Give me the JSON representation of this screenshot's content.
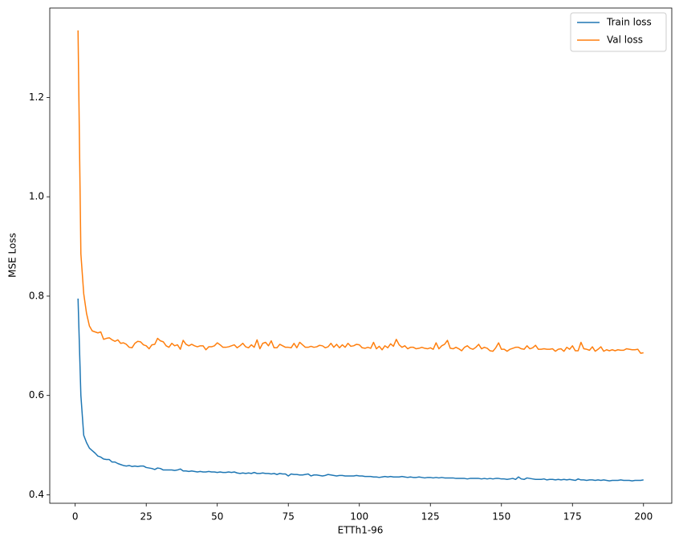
{
  "chart_data": {
    "type": "line",
    "xlabel": "ETTh1-96",
    "ylabel": "MSE Loss",
    "legend": "upper right",
    "grid": false,
    "xlim": [
      -8.95,
      209.95
    ],
    "ylim": [
      0.383,
      1.38
    ],
    "xticks": [
      0,
      25,
      50,
      75,
      100,
      125,
      150,
      175,
      200
    ],
    "yticks": [
      0.4,
      0.6,
      0.8,
      {
        "value": 1,
        "label": "1.0"
      },
      1.2
    ],
    "x": [
      1,
      2,
      3,
      4,
      5,
      6,
      7,
      8,
      9,
      10,
      11,
      12,
      13,
      14,
      15,
      16,
      17,
      18,
      19,
      20,
      21,
      22,
      23,
      24,
      25,
      26,
      27,
      28,
      29,
      30,
      31,
      32,
      33,
      34,
      35,
      36,
      37,
      38,
      39,
      40,
      41,
      42,
      43,
      44,
      45,
      46,
      47,
      48,
      49,
      50,
      51,
      52,
      53,
      54,
      55,
      56,
      57,
      58,
      59,
      60,
      61,
      62,
      63,
      64,
      65,
      66,
      67,
      68,
      69,
      70,
      71,
      72,
      73,
      74,
      75,
      76,
      77,
      78,
      79,
      80,
      81,
      82,
      83,
      84,
      85,
      86,
      87,
      88,
      89,
      90,
      91,
      92,
      93,
      94,
      95,
      96,
      97,
      98,
      99,
      100,
      101,
      102,
      103,
      104,
      105,
      106,
      107,
      108,
      109,
      110,
      111,
      112,
      113,
      114,
      115,
      116,
      117,
      118,
      119,
      120,
      121,
      122,
      123,
      124,
      125,
      126,
      127,
      128,
      129,
      130,
      131,
      132,
      133,
      134,
      135,
      136,
      137,
      138,
      139,
      140,
      141,
      142,
      143,
      144,
      145,
      146,
      147,
      148,
      149,
      150,
      151,
      152,
      153,
      154,
      155,
      156,
      157,
      158,
      159,
      160,
      161,
      162,
      163,
      164,
      165,
      166,
      167,
      168,
      169,
      170,
      171,
      172,
      173,
      174,
      175,
      176,
      177,
      178,
      179,
      180,
      181,
      182,
      183,
      184,
      185,
      186,
      187,
      188,
      189,
      190,
      191,
      192,
      193,
      194,
      195,
      196,
      197,
      198,
      199,
      200
    ],
    "series": [
      {
        "name": "Train loss",
        "color": "#1f77b4",
        "values": [
          0.795,
          0.6,
          0.52,
          0.505,
          0.494,
          0.489,
          0.484,
          0.478,
          0.476,
          0.472,
          0.471,
          0.471,
          0.466,
          0.466,
          0.463,
          0.461,
          0.459,
          0.458,
          0.459,
          0.457,
          0.458,
          0.457,
          0.458,
          0.458,
          0.455,
          0.454,
          0.453,
          0.451,
          0.454,
          0.453,
          0.45,
          0.45,
          0.45,
          0.45,
          0.449,
          0.45,
          0.452,
          0.448,
          0.448,
          0.447,
          0.448,
          0.447,
          0.446,
          0.447,
          0.446,
          0.446,
          0.447,
          0.446,
          0.446,
          0.445,
          0.446,
          0.445,
          0.445,
          0.446,
          0.445,
          0.446,
          0.444,
          0.443,
          0.444,
          0.443,
          0.444,
          0.443,
          0.445,
          0.443,
          0.443,
          0.444,
          0.443,
          0.443,
          0.442,
          0.443,
          0.441,
          0.443,
          0.442,
          0.442,
          0.438,
          0.442,
          0.441,
          0.441,
          0.44,
          0.44,
          0.441,
          0.442,
          0.438,
          0.44,
          0.44,
          0.439,
          0.438,
          0.439,
          0.441,
          0.44,
          0.439,
          0.438,
          0.439,
          0.439,
          0.438,
          0.438,
          0.438,
          0.438,
          0.439,
          0.438,
          0.438,
          0.437,
          0.437,
          0.437,
          0.436,
          0.436,
          0.435,
          0.436,
          0.437,
          0.436,
          0.437,
          0.436,
          0.436,
          0.436,
          0.437,
          0.436,
          0.435,
          0.436,
          0.435,
          0.435,
          0.436,
          0.435,
          0.434,
          0.435,
          0.435,
          0.434,
          0.435,
          0.434,
          0.435,
          0.434,
          0.434,
          0.434,
          0.434,
          0.433,
          0.433,
          0.433,
          0.433,
          0.432,
          0.433,
          0.433,
          0.433,
          0.433,
          0.432,
          0.433,
          0.432,
          0.433,
          0.432,
          0.433,
          0.433,
          0.432,
          0.432,
          0.431,
          0.432,
          0.433,
          0.431,
          0.436,
          0.432,
          0.431,
          0.434,
          0.433,
          0.432,
          0.431,
          0.431,
          0.431,
          0.432,
          0.43,
          0.431,
          0.431,
          0.43,
          0.431,
          0.43,
          0.431,
          0.43,
          0.431,
          0.43,
          0.429,
          0.432,
          0.43,
          0.43,
          0.429,
          0.43,
          0.43,
          0.429,
          0.43,
          0.429,
          0.43,
          0.429,
          0.428,
          0.429,
          0.429,
          0.429,
          0.43,
          0.429,
          0.429,
          0.429,
          0.428,
          0.429,
          0.429,
          0.429,
          0.43
        ]
      },
      {
        "name": "Val loss",
        "color": "#ff7f0e",
        "values": [
          1.335,
          0.885,
          0.805,
          0.765,
          0.74,
          0.73,
          0.728,
          0.726,
          0.728,
          0.713,
          0.715,
          0.716,
          0.712,
          0.709,
          0.712,
          0.705,
          0.706,
          0.703,
          0.697,
          0.696,
          0.705,
          0.709,
          0.708,
          0.702,
          0.7,
          0.694,
          0.702,
          0.703,
          0.715,
          0.71,
          0.708,
          0.7,
          0.697,
          0.705,
          0.7,
          0.702,
          0.693,
          0.711,
          0.703,
          0.7,
          0.703,
          0.7,
          0.698,
          0.7,
          0.7,
          0.692,
          0.698,
          0.698,
          0.7,
          0.706,
          0.702,
          0.697,
          0.697,
          0.698,
          0.7,
          0.702,
          0.696,
          0.7,
          0.705,
          0.698,
          0.696,
          0.702,
          0.697,
          0.712,
          0.694,
          0.705,
          0.707,
          0.7,
          0.71,
          0.696,
          0.696,
          0.703,
          0.7,
          0.697,
          0.697,
          0.696,
          0.705,
          0.696,
          0.707,
          0.702,
          0.697,
          0.697,
          0.699,
          0.697,
          0.698,
          0.701,
          0.7,
          0.696,
          0.698,
          0.705,
          0.697,
          0.703,
          0.696,
          0.702,
          0.697,
          0.705,
          0.699,
          0.7,
          0.703,
          0.702,
          0.696,
          0.695,
          0.697,
          0.695,
          0.707,
          0.694,
          0.699,
          0.692,
          0.7,
          0.696,
          0.704,
          0.699,
          0.713,
          0.702,
          0.697,
          0.7,
          0.694,
          0.697,
          0.697,
          0.694,
          0.695,
          0.697,
          0.695,
          0.694,
          0.696,
          0.693,
          0.706,
          0.694,
          0.7,
          0.703,
          0.711,
          0.695,
          0.694,
          0.697,
          0.694,
          0.69,
          0.697,
          0.7,
          0.695,
          0.693,
          0.697,
          0.703,
          0.694,
          0.697,
          0.695,
          0.69,
          0.689,
          0.696,
          0.706,
          0.693,
          0.693,
          0.689,
          0.693,
          0.695,
          0.697,
          0.697,
          0.694,
          0.693,
          0.7,
          0.694,
          0.696,
          0.701,
          0.693,
          0.693,
          0.694,
          0.693,
          0.693,
          0.694,
          0.689,
          0.693,
          0.694,
          0.689,
          0.697,
          0.693,
          0.7,
          0.69,
          0.69,
          0.707,
          0.694,
          0.693,
          0.691,
          0.698,
          0.689,
          0.693,
          0.698,
          0.689,
          0.692,
          0.69,
          0.692,
          0.69,
          0.692,
          0.691,
          0.691,
          0.694,
          0.693,
          0.692,
          0.692,
          0.693,
          0.685,
          0.686
        ]
      }
    ]
  }
}
